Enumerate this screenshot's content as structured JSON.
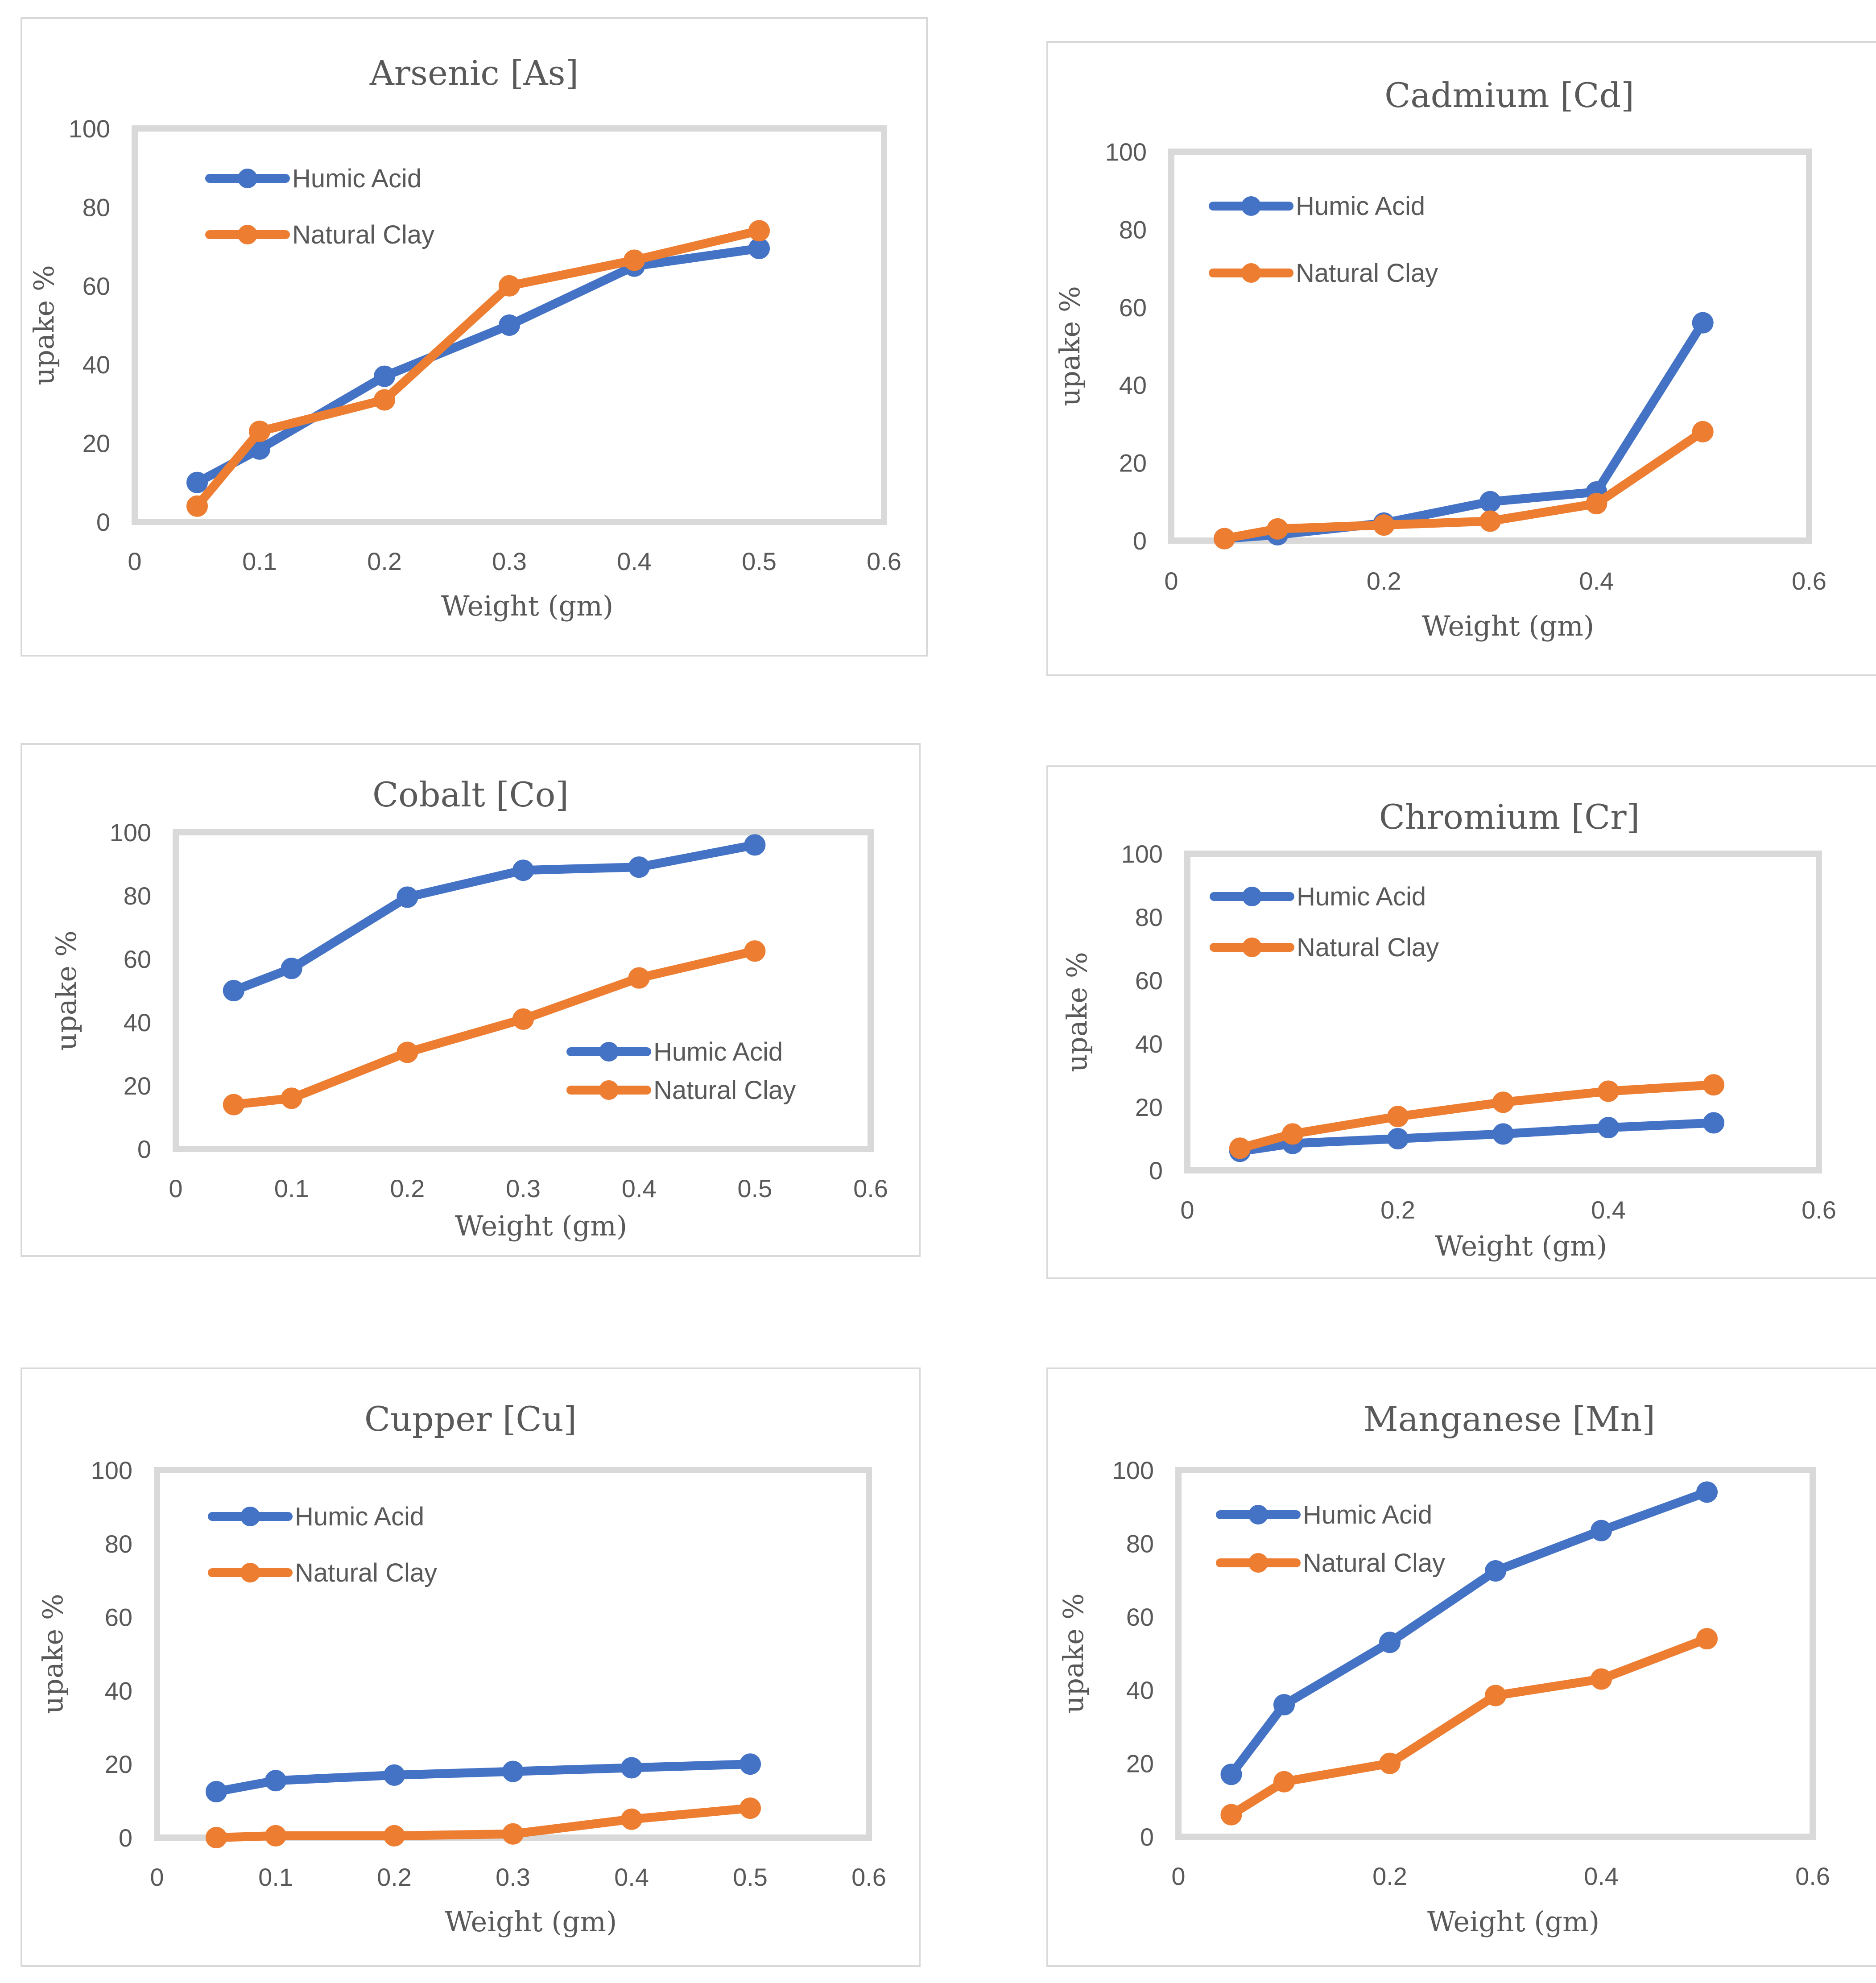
{
  "chart_data": [
    {
      "type": "line",
      "title": "Arsenic [As]",
      "xlabel": "Weight (gm)",
      "ylabel": "upake %",
      "xlim": [
        0,
        0.6
      ],
      "ylim": [
        0,
        100
      ],
      "xticks": [
        0,
        0.1,
        0.2,
        0.3,
        0.4,
        0.5,
        0.6
      ],
      "yticks": [
        0,
        20,
        40,
        60,
        80,
        100
      ],
      "legend": "top-left",
      "series": [
        {
          "name": "Humic Acid",
          "color": "#4472C4",
          "x": [
            0.05,
            0.1,
            0.2,
            0.3,
            0.4,
            0.5
          ],
          "y": [
            10,
            18.5,
            37,
            50,
            65,
            69.5
          ]
        },
        {
          "name": "Natural Clay",
          "color": "#ED7D31",
          "x": [
            0.05,
            0.1,
            0.2,
            0.3,
            0.4,
            0.5
          ],
          "y": [
            4,
            23,
            31,
            60,
            66.5,
            74
          ]
        }
      ]
    },
    {
      "type": "line",
      "title": "Cadmium [Cd]",
      "xlabel": "Weight (gm)",
      "ylabel": "upake %",
      "xlim": [
        0,
        0.6
      ],
      "ylim": [
        0,
        100
      ],
      "xticks": [
        0,
        0.2,
        0.4,
        0.6
      ],
      "yticks": [
        0,
        20,
        40,
        60,
        80,
        100
      ],
      "legend": "top-left",
      "series": [
        {
          "name": "Humic Acid",
          "color": "#4472C4",
          "x": [
            0.05,
            0.1,
            0.2,
            0.3,
            0.4,
            0.5
          ],
          "y": [
            0.5,
            1.5,
            4.5,
            10,
            12.5,
            56
          ]
        },
        {
          "name": "Natural Clay",
          "color": "#ED7D31",
          "x": [
            0.05,
            0.1,
            0.2,
            0.3,
            0.4,
            0.5
          ],
          "y": [
            0.5,
            3,
            4,
            5,
            9.5,
            28
          ]
        }
      ]
    },
    {
      "type": "line",
      "title": "Cobalt [Co]",
      "xlabel": "Weight (gm)",
      "ylabel": "upake %",
      "xlim": [
        0,
        0.6
      ],
      "ylim": [
        0,
        100
      ],
      "xticks": [
        0,
        0.1,
        0.2,
        0.3,
        0.4,
        0.5,
        0.6
      ],
      "yticks": [
        0,
        20,
        40,
        60,
        80,
        100
      ],
      "legend": "bottom-right",
      "series": [
        {
          "name": "Humic Acid",
          "color": "#4472C4",
          "x": [
            0.05,
            0.1,
            0.2,
            0.3,
            0.4,
            0.5
          ],
          "y": [
            50,
            57,
            79.5,
            88,
            89,
            96
          ]
        },
        {
          "name": "Natural Clay",
          "color": "#ED7D31",
          "x": [
            0.05,
            0.1,
            0.2,
            0.3,
            0.4,
            0.5
          ],
          "y": [
            14,
            16,
            30.5,
            41,
            54,
            62.5
          ]
        }
      ]
    },
    {
      "type": "line",
      "title": "Chromium [Cr]",
      "xlabel": "Weight (gm)",
      "ylabel": "upake %",
      "xlim": [
        0,
        0.6
      ],
      "ylim": [
        0,
        100
      ],
      "xticks": [
        0,
        0.2,
        0.4,
        0.6
      ],
      "yticks": [
        0,
        20,
        40,
        60,
        80,
        100
      ],
      "legend": "top-left",
      "series": [
        {
          "name": "Humic Acid",
          "color": "#4472C4",
          "x": [
            0.05,
            0.1,
            0.2,
            0.3,
            0.4,
            0.5
          ],
          "y": [
            6,
            8.5,
            10,
            11.5,
            13.5,
            15
          ]
        },
        {
          "name": "Natural Clay",
          "color": "#ED7D31",
          "x": [
            0.05,
            0.1,
            0.2,
            0.3,
            0.4,
            0.5
          ],
          "y": [
            7,
            11.5,
            17,
            21.5,
            25,
            27
          ]
        }
      ]
    },
    {
      "type": "line",
      "title": "Cupper [Cu]",
      "xlabel": "Weight (gm)",
      "ylabel": "upake %",
      "xlim": [
        0,
        0.6
      ],
      "ylim": [
        0,
        100
      ],
      "xticks": [
        0,
        0.1,
        0.2,
        0.3,
        0.4,
        0.5,
        0.6
      ],
      "yticks": [
        0,
        20,
        40,
        60,
        80,
        100
      ],
      "legend": "top-left",
      "series": [
        {
          "name": "Humic Acid",
          "color": "#4472C4",
          "x": [
            0.05,
            0.1,
            0.2,
            0.3,
            0.4,
            0.5
          ],
          "y": [
            12.5,
            15.5,
            17,
            18,
            19,
            20
          ]
        },
        {
          "name": "Natural Clay",
          "color": "#ED7D31",
          "x": [
            0.05,
            0.1,
            0.2,
            0.3,
            0.4,
            0.5
          ],
          "y": [
            0,
            0.5,
            0.5,
            1,
            5,
            8
          ]
        }
      ]
    },
    {
      "type": "line",
      "title": "Manganese [Mn]",
      "xlabel": "Weight (gm)",
      "ylabel": "upake %",
      "xlim": [
        0,
        0.6
      ],
      "ylim": [
        0,
        100
      ],
      "xticks": [
        0,
        0.2,
        0.4,
        0.6
      ],
      "yticks": [
        0,
        20,
        40,
        60,
        80,
        100
      ],
      "legend": "top-left",
      "series": [
        {
          "name": "Humic Acid",
          "color": "#4472C4",
          "x": [
            0.05,
            0.1,
            0.2,
            0.3,
            0.4,
            0.5
          ],
          "y": [
            17,
            36,
            53,
            72.5,
            83.5,
            94
          ]
        },
        {
          "name": "Natural Clay",
          "color": "#ED7D31",
          "x": [
            0.05,
            0.1,
            0.2,
            0.3,
            0.4,
            0.5
          ],
          "y": [
            6,
            15,
            20,
            38.5,
            43,
            54
          ]
        }
      ]
    }
  ]
}
